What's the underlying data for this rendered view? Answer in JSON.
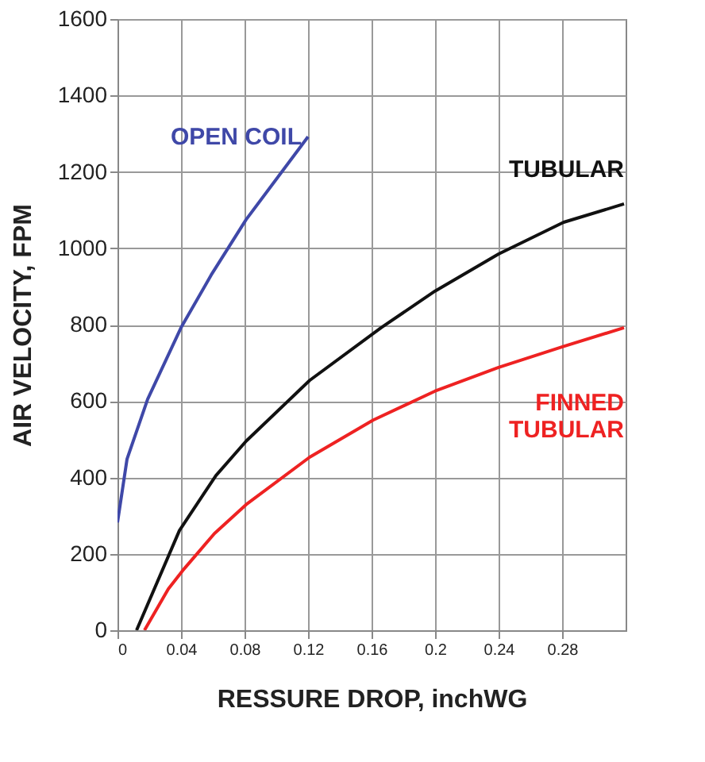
{
  "chart_data": {
    "type": "line",
    "xlabel": "RESSURE DROP, inchWG",
    "ylabel": "AIR VELOCITY, FPM",
    "xlim": [
      0,
      0.32
    ],
    "xticks": [
      0,
      0.04,
      0.08,
      0.12,
      0.16,
      0.2,
      0.24,
      0.28
    ],
    "ylim": [
      0,
      1600
    ],
    "yticks": [
      0,
      200,
      400,
      600,
      800,
      1000,
      1200,
      1400,
      1600
    ],
    "grid": true,
    "marker": "none",
    "line_style": "solid",
    "series": [
      {
        "name": "OPEN COIL",
        "color": "#3f48a8",
        "x": [
          0,
          0.006,
          0.019,
          0.04,
          0.059,
          0.081,
          0.12
        ],
        "values": [
          282,
          448,
          605,
          792,
          930,
          1075,
          1292
        ]
      },
      {
        "name": "TUBULAR",
        "color": "#111111",
        "x": [
          0.012,
          0.039,
          0.062,
          0.081,
          0.121,
          0.166,
          0.2,
          0.24,
          0.281,
          0.319
        ],
        "values": [
          0,
          261,
          405,
          495,
          654,
          792,
          888,
          985,
          1068,
          1116
        ]
      },
      {
        "name": "FINNED TUBULAR",
        "color": "#ee2222",
        "x": [
          0.017,
          0.032,
          0.041,
          0.061,
          0.081,
          0.121,
          0.161,
          0.2,
          0.24,
          0.281,
          0.319
        ],
        "values": [
          0,
          108,
          156,
          253,
          329,
          453,
          550,
          626,
          688,
          743,
          792
        ]
      }
    ]
  }
}
